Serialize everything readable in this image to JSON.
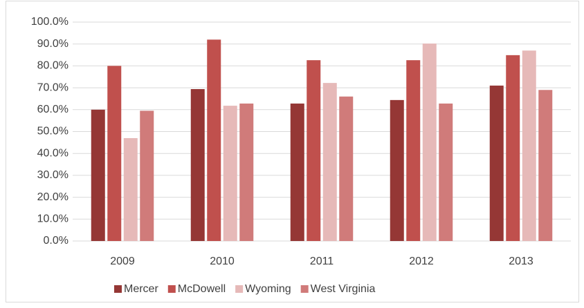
{
  "chart_data": {
    "type": "bar",
    "categories": [
      "2009",
      "2010",
      "2011",
      "2012",
      "2013"
    ],
    "series": [
      {
        "name": "Mercer",
        "color": "#953735",
        "values": [
          60,
          69.4,
          62.8,
          64.4,
          71
        ]
      },
      {
        "name": "McDowell",
        "color": "#c0504d",
        "values": [
          80,
          92,
          82.6,
          82.6,
          84.9
        ]
      },
      {
        "name": "Wyoming",
        "color": "#e6b9b8",
        "values": [
          47,
          61.8,
          72.2,
          90.2,
          87
        ]
      },
      {
        "name": "West Virginia",
        "color": "#d07b7a",
        "values": [
          59.5,
          62.8,
          66,
          62.8,
          69
        ]
      }
    ],
    "ylim": [
      0,
      100
    ],
    "yticks": [
      {
        "value": 0,
        "label": "0.0%"
      },
      {
        "value": 10,
        "label": "10.0%"
      },
      {
        "value": 20,
        "label": "20.0%"
      },
      {
        "value": 30,
        "label": "30.0%"
      },
      {
        "value": 40,
        "label": "40.0%"
      },
      {
        "value": 50,
        "label": "50.0%"
      },
      {
        "value": 60,
        "label": "60.0%"
      },
      {
        "value": 70,
        "label": "70.0%"
      },
      {
        "value": 80,
        "label": "80.0%"
      },
      {
        "value": 90,
        "label": "90.0%"
      },
      {
        "value": 100,
        "label": "100.0%"
      }
    ],
    "grid": true,
    "legend": "bottom"
  }
}
